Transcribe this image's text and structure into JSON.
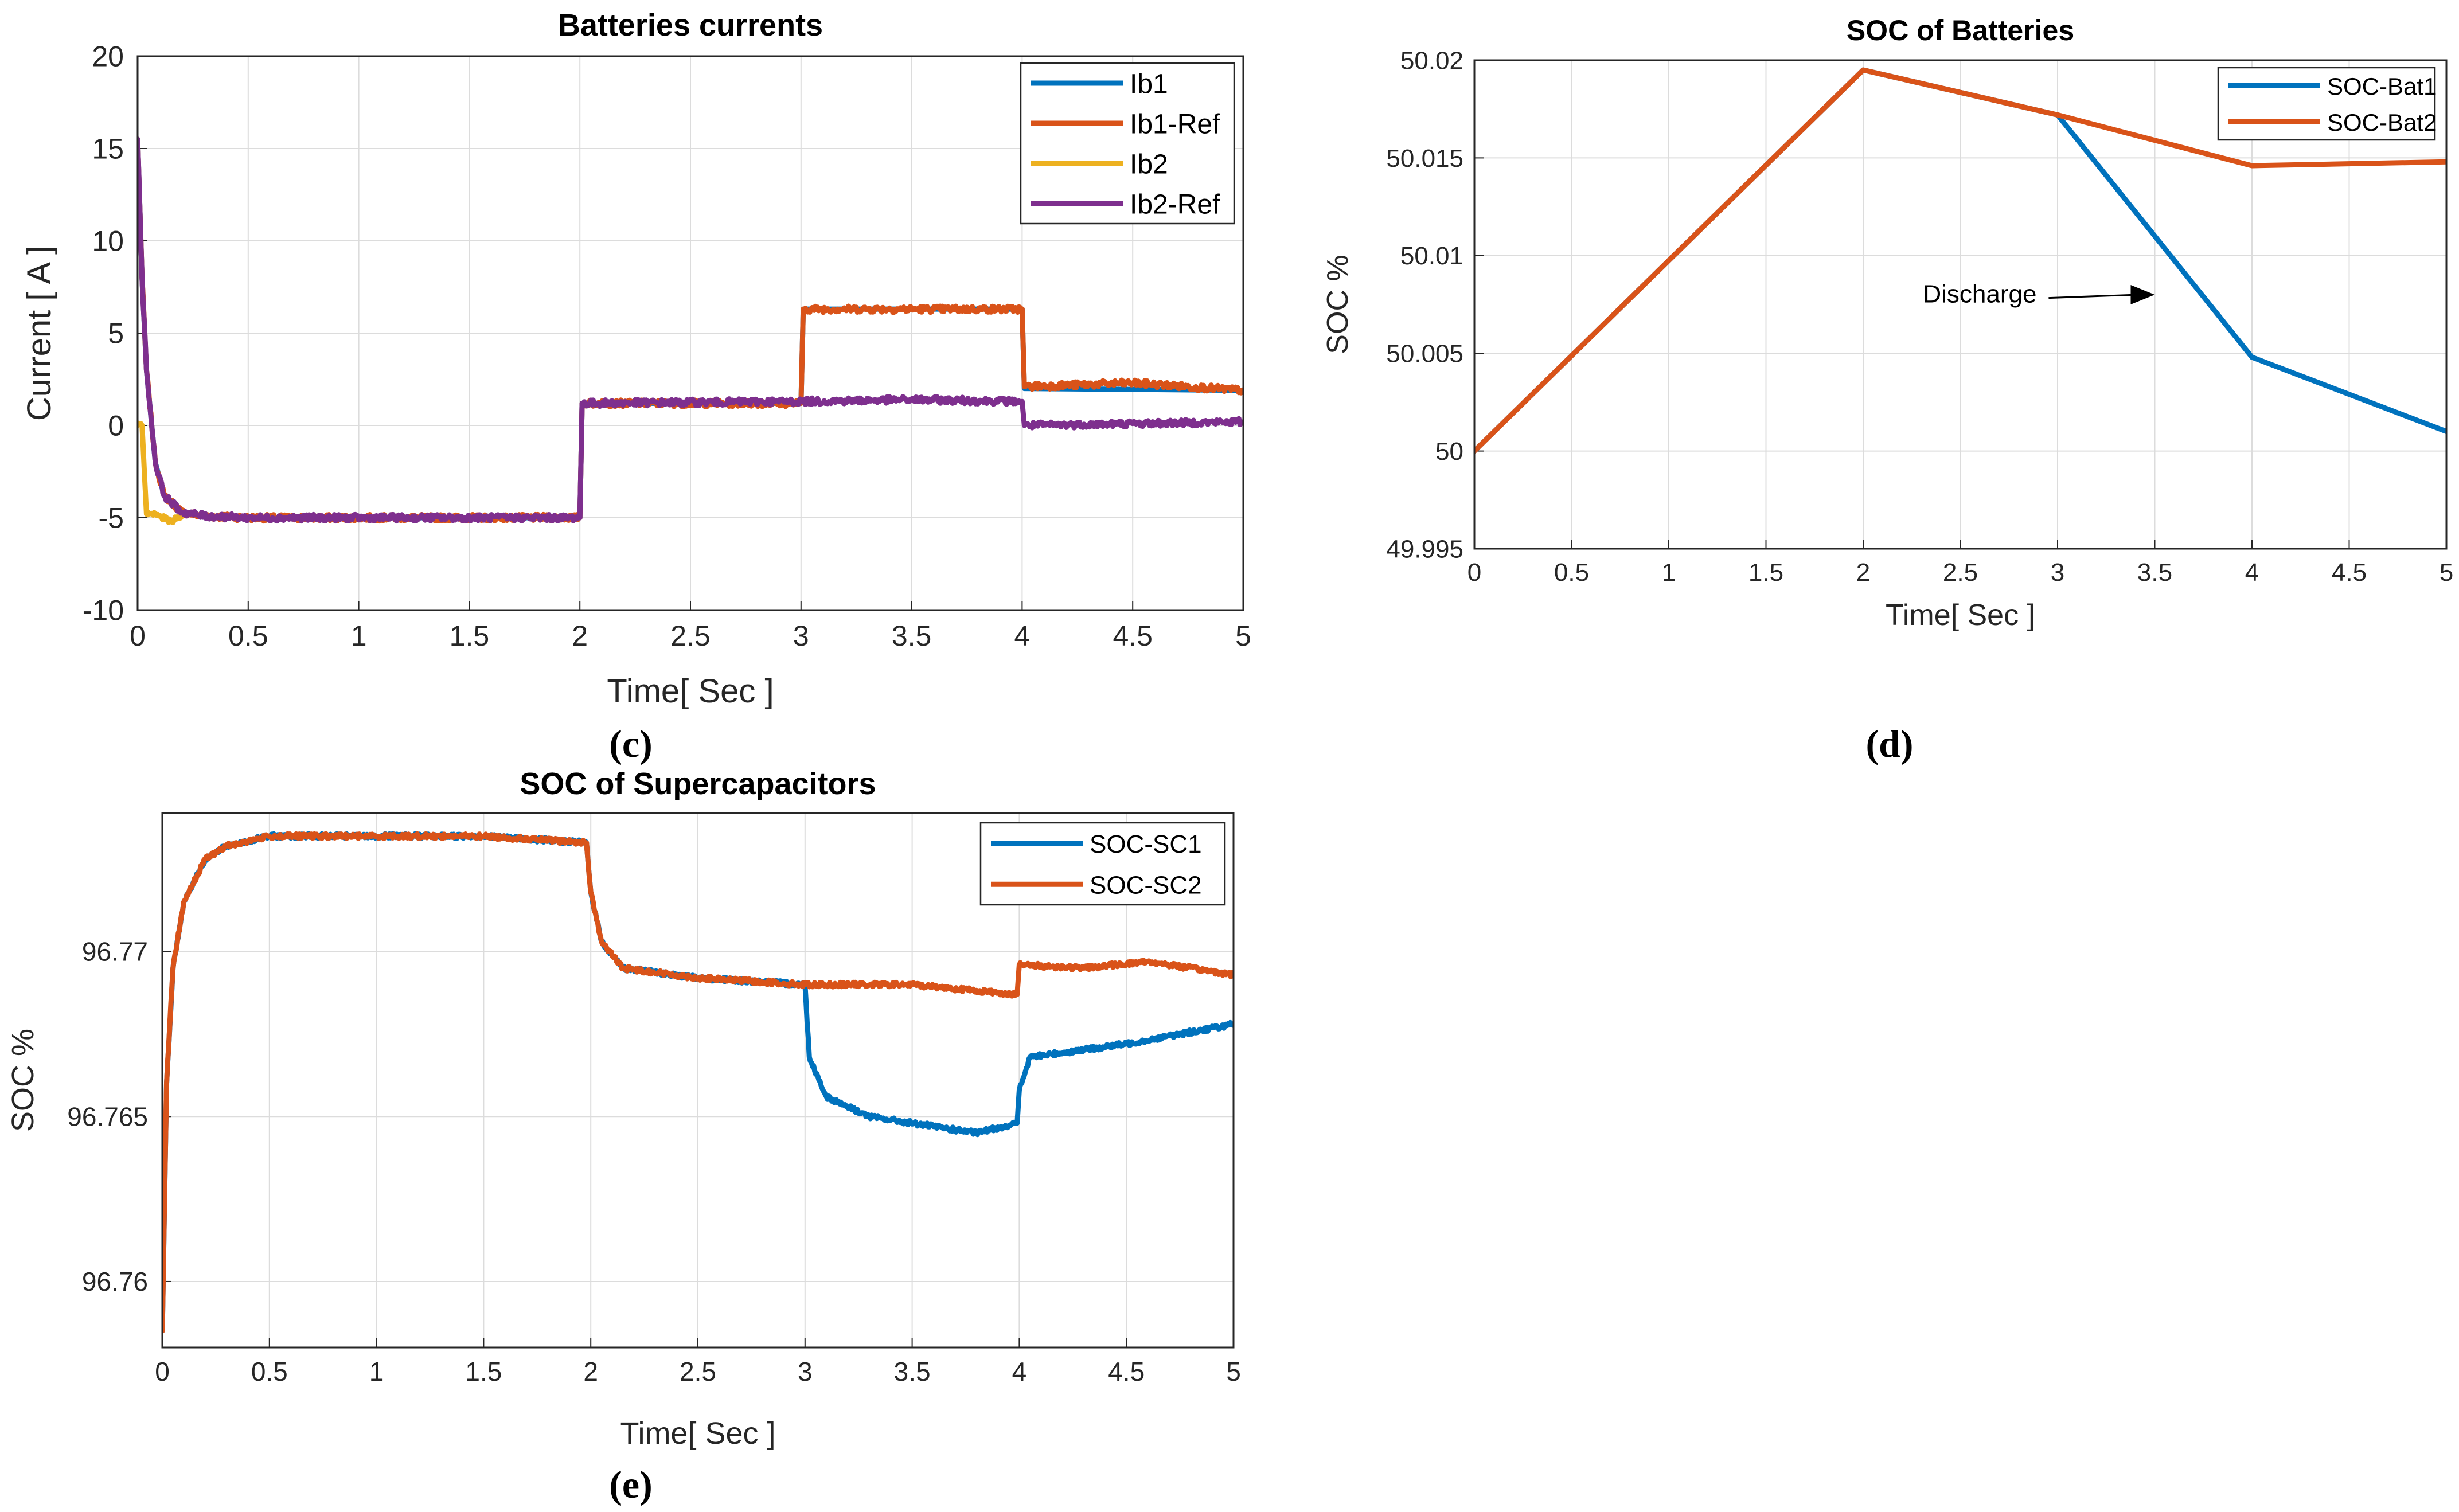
{
  "chart_data": [
    {
      "id": "c",
      "type": "line",
      "title": "Batteries currents",
      "xlabel": "Time[ Sec ]",
      "ylabel": "Current [ A ]",
      "caption": "(c)",
      "xlim": [
        0,
        5
      ],
      "ylim": [
        -10,
        20
      ],
      "xticks": [
        0,
        0.5,
        1,
        1.5,
        2,
        2.5,
        3,
        3.5,
        4,
        4.5,
        5
      ],
      "xtick_labels": [
        "0",
        "0.5",
        "1",
        "1.5",
        "2",
        "2.5",
        "3",
        "3.5",
        "4",
        "4.5",
        "5"
      ],
      "yticks": [
        -10,
        -5,
        0,
        5,
        10,
        15,
        20
      ],
      "ytick_labels": [
        "-10",
        "-5",
        "0",
        "5",
        "10",
        "15",
        "20"
      ],
      "legend_position": "top-right",
      "grid": true,
      "series": [
        {
          "name": "Ib1",
          "color": "#0072BD",
          "x": [
            0,
            0.02,
            0.04,
            0.08,
            0.12,
            0.2,
            0.3,
            0.5,
            2.0,
            2.01,
            3.0,
            3.01,
            4.0,
            4.01,
            5.0
          ],
          "y": [
            15.5,
            8,
            3,
            -2,
            -3.8,
            -4.7,
            -4.9,
            -5,
            -5,
            1.2,
            1.2,
            6.3,
            6.3,
            2.0,
            1.9
          ]
        },
        {
          "name": "Ib1-Ref",
          "color": "#D95319",
          "x": [
            0,
            0.02,
            0.04,
            0.08,
            0.12,
            0.2,
            0.3,
            0.5,
            2.0,
            2.01,
            3.0,
            3.01,
            4.0,
            4.01,
            4.5,
            5.0
          ],
          "y": [
            15.5,
            8,
            3,
            -2,
            -3.8,
            -4.7,
            -4.9,
            -5,
            -5,
            1.2,
            1.2,
            6.3,
            6.3,
            2.1,
            2.3,
            1.9
          ]
        },
        {
          "name": "Ib2",
          "color": "#EDB120",
          "x": [
            0,
            0.02,
            0.04,
            0.08,
            0.15,
            0.2
          ],
          "y": [
            0,
            0,
            -4.8,
            -4.8,
            -5.2,
            -4.9
          ]
        },
        {
          "name": "Ib2-Ref",
          "color": "#7E2F8E",
          "x": [
            0,
            0.02,
            0.04,
            0.08,
            0.12,
            0.2,
            0.3,
            0.5,
            2.0,
            2.01,
            3.0,
            3.5,
            4.0,
            4.01,
            5.0
          ],
          "y": [
            15.5,
            8,
            3,
            -2,
            -3.8,
            -4.7,
            -4.9,
            -5,
            -5,
            1.2,
            1.3,
            1.4,
            1.3,
            0,
            0.2
          ]
        }
      ]
    },
    {
      "id": "d",
      "type": "line",
      "title": "SOC of Batteries",
      "xlabel": "Time[ Sec ]",
      "ylabel": "SOC %",
      "caption": "(d)",
      "xlim": [
        0,
        5
      ],
      "ylim": [
        49.995,
        50.02
      ],
      "xticks": [
        0,
        0.5,
        1,
        1.5,
        2,
        2.5,
        3,
        3.5,
        4,
        4.5,
        5
      ],
      "xtick_labels": [
        "0",
        "0.5",
        "1",
        "1.5",
        "2",
        "2.5",
        "3",
        "3.5",
        "4",
        "4.5",
        "5"
      ],
      "yticks": [
        49.995,
        50,
        50.005,
        50.01,
        50.015,
        50.02
      ],
      "ytick_labels": [
        "49.995",
        "50",
        "50.005",
        "50.01",
        "50.015",
        "50.02"
      ],
      "legend_position": "top-right",
      "grid": true,
      "annotation": {
        "text": "Discharge",
        "x": 2.6,
        "y": 50.0076,
        "arrow_to_x": 3.5,
        "arrow_to_y": 50.008
      },
      "series": [
        {
          "name": "SOC-Bat1",
          "color": "#0072BD",
          "x": [
            0,
            2,
            3,
            4,
            5
          ],
          "y": [
            50.0,
            50.0195,
            50.0172,
            50.0048,
            50.001
          ]
        },
        {
          "name": "SOC-Bat2",
          "color": "#D95319",
          "x": [
            0,
            2,
            3,
            4,
            5
          ],
          "y": [
            50.0,
            50.0195,
            50.0172,
            50.0146,
            50.0148
          ]
        }
      ]
    },
    {
      "id": "e",
      "type": "line",
      "title": "SOC of Supercapacitors",
      "xlabel": "Time[ Sec ]",
      "ylabel": "SOC %",
      "caption": "(e)",
      "xlim": [
        0,
        5
      ],
      "ylim": [
        96.758,
        96.7742
      ],
      "xticks": [
        0,
        0.5,
        1,
        1.5,
        2,
        2.5,
        3,
        3.5,
        4,
        4.5,
        5
      ],
      "xtick_labels": [
        "0",
        "0.5",
        "1",
        "1.5",
        "2",
        "2.5",
        "3",
        "3.5",
        "4",
        "4.5",
        "5"
      ],
      "yticks": [
        96.76,
        96.765,
        96.77
      ],
      "ytick_labels": [
        "96.76",
        "96.765",
        "96.77"
      ],
      "legend_position": "top-right",
      "grid": true,
      "series": [
        {
          "name": "SOC-SC1",
          "color": "#0072BD",
          "x": [
            0,
            0.02,
            0.05,
            0.1,
            0.2,
            0.3,
            0.5,
            1.0,
            1.5,
            1.98,
            2.0,
            2.05,
            2.15,
            2.5,
            3.0,
            3.02,
            3.1,
            3.3,
            3.8,
            3.99,
            4.0,
            4.05,
            4.5,
            5.0
          ],
          "y": [
            96.7585,
            96.766,
            96.7695,
            96.7715,
            96.7728,
            96.7732,
            96.7735,
            96.7735,
            96.7735,
            96.7733,
            96.7718,
            96.7703,
            96.7695,
            96.7692,
            96.769,
            96.7668,
            96.7656,
            96.765,
            96.7645,
            96.7648,
            96.7658,
            96.7668,
            96.7672,
            96.7678
          ]
        },
        {
          "name": "SOC-SC2",
          "color": "#D95319",
          "x": [
            0,
            0.02,
            0.05,
            0.1,
            0.2,
            0.3,
            0.5,
            1.0,
            1.5,
            1.98,
            2.0,
            2.05,
            2.15,
            2.5,
            3.0,
            3.5,
            3.99,
            4.0,
            4.3,
            4.6,
            5.0
          ],
          "y": [
            96.7585,
            96.766,
            96.7695,
            96.7715,
            96.7728,
            96.7732,
            96.7735,
            96.7735,
            96.7735,
            96.7733,
            96.7718,
            96.7703,
            96.7695,
            96.7692,
            96.769,
            96.769,
            96.7687,
            96.7696,
            96.7695,
            96.7697,
            96.7693
          ]
        }
      ]
    }
  ]
}
